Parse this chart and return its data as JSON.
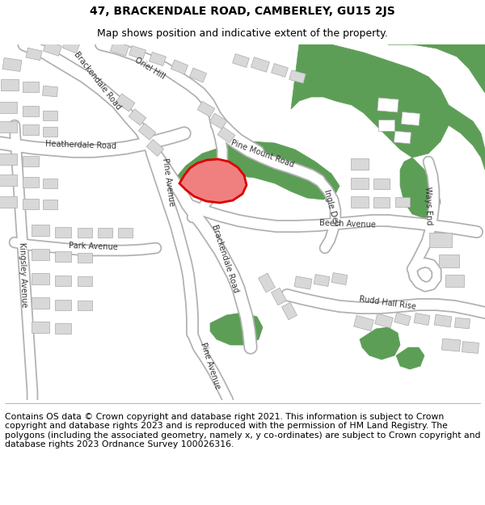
{
  "title": "47, BRACKENDALE ROAD, CAMBERLEY, GU15 2JS",
  "subtitle": "Map shows position and indicative extent of the property.",
  "footer": "Contains OS data © Crown copyright and database right 2021. This information is subject to Crown copyright and database rights 2023 and is reproduced with the permission of HM Land Registry. The polygons (including the associated geometry, namely x, y co-ordinates) are subject to Crown copyright and database rights 2023 Ordnance Survey 100026316.",
  "title_fontsize": 10,
  "subtitle_fontsize": 9,
  "footer_fontsize": 7.8,
  "bg_color": "#f0eeea",
  "road_color": "#ffffff",
  "road_edge_color": "#b0b0b0",
  "building_color": "#d8d8d8",
  "building_edge_color": "#aaaaaa",
  "green_color": "#5d9e57",
  "plot_outline_color": "#dd0000",
  "plot_fill_color": "#f08080"
}
